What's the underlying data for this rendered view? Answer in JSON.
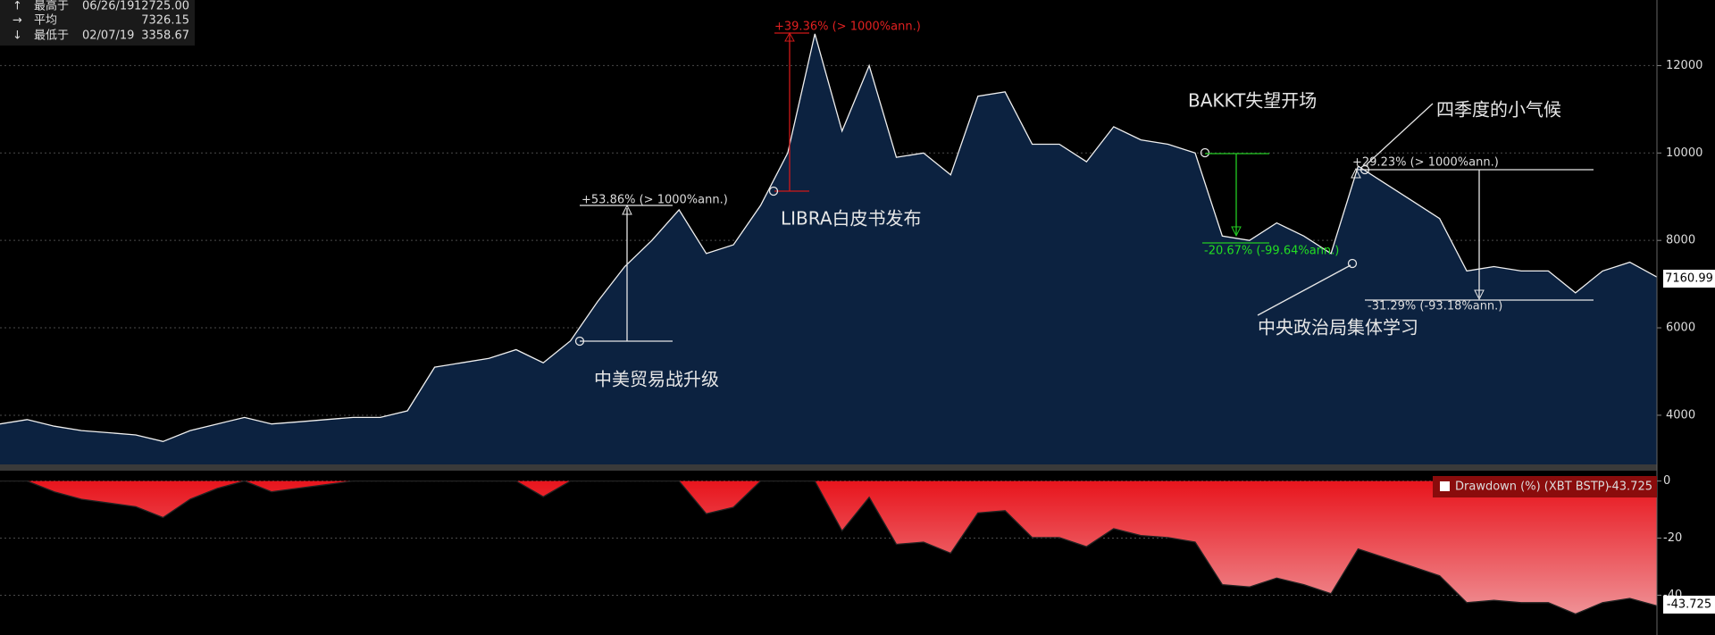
{
  "chart_data": [
    {
      "type": "area",
      "series": [
        {
          "color": "#0c2240",
          "values": [
            3800,
            3900,
            3750,
            3650,
            3600,
            3550,
            3400,
            3650,
            3800,
            3950,
            3800,
            3850,
            3900,
            3950,
            3950,
            4100,
            5100,
            5200,
            5300,
            5500,
            5200,
            5700,
            6600,
            7400,
            8000,
            8700,
            7700,
            7900,
            8800,
            10000,
            12725,
            10500,
            12000,
            9900,
            10000,
            9500,
            11300,
            11400,
            10200,
            10200,
            9800,
            10600,
            10300,
            10200,
            10000,
            8100,
            8000,
            8400,
            8100,
            7700,
            9700,
            9300,
            8900,
            8500,
            7300,
            7400,
            7300,
            7300,
            6800,
            7300,
            7500,
            7160.99
          ]
        }
      ],
      "ylim": [
        2875,
        13500
      ],
      "yticks": [
        4000,
        6000,
        8000,
        10000,
        12000
      ],
      "grid": true,
      "stats": [
        {
          "label": "最高于",
          "date": "06/26/19",
          "value": "12725.00"
        },
        {
          "label": "平均",
          "value": "7326.15"
        },
        {
          "label": "最低于",
          "date": "02/07/19",
          "value": "3358.67"
        }
      ],
      "annotations": [
        "+53.86% (> 1000%ann.)",
        "中美贸易战升级",
        "+39.36% (> 1000%ann.)",
        "LIBRA白皮书发布",
        "BAKKT失望开场",
        "-20.67% (-99.64%ann.)",
        "四季度的小气候",
        "+29.23% (> 1000%ann.)",
        "-31.29% (-93.18%ann.)",
        "中央政治局集体学习"
      ]
    },
    {
      "type": "area",
      "series": [
        {
          "name": "Drawdown (%) (XBT BSTP)",
          "color": "#e8141c",
          "values": [
            0,
            0,
            -3.8,
            -6.4,
            -7.7,
            -9,
            -12.8,
            -6.4,
            -2.6,
            0,
            -3.8,
            -2.5,
            -1.3,
            0,
            0,
            0,
            0,
            0,
            0,
            0,
            -5.5,
            0,
            0,
            0,
            0,
            0,
            -11.5,
            -9.2,
            0,
            0,
            0,
            -17.5,
            -5.7,
            -22.2,
            -21.4,
            -25.3,
            -11.2,
            -10.4,
            -19.8,
            -19.8,
            -23,
            -16.7,
            -19.1,
            -19.8,
            -21.4,
            -36.3,
            -37.1,
            -34,
            -36.3,
            -39.5,
            -23.8,
            -26.9,
            -30,
            -33.2,
            -42.6,
            -41.8,
            -42.6,
            -42.6,
            -46.6,
            -42.6,
            -41.1,
            -43.725
          ]
        }
      ],
      "ylim": [
        -53,
        3
      ],
      "yticks": [
        0,
        -20,
        -40
      ],
      "grid": true
    }
  ]
}
